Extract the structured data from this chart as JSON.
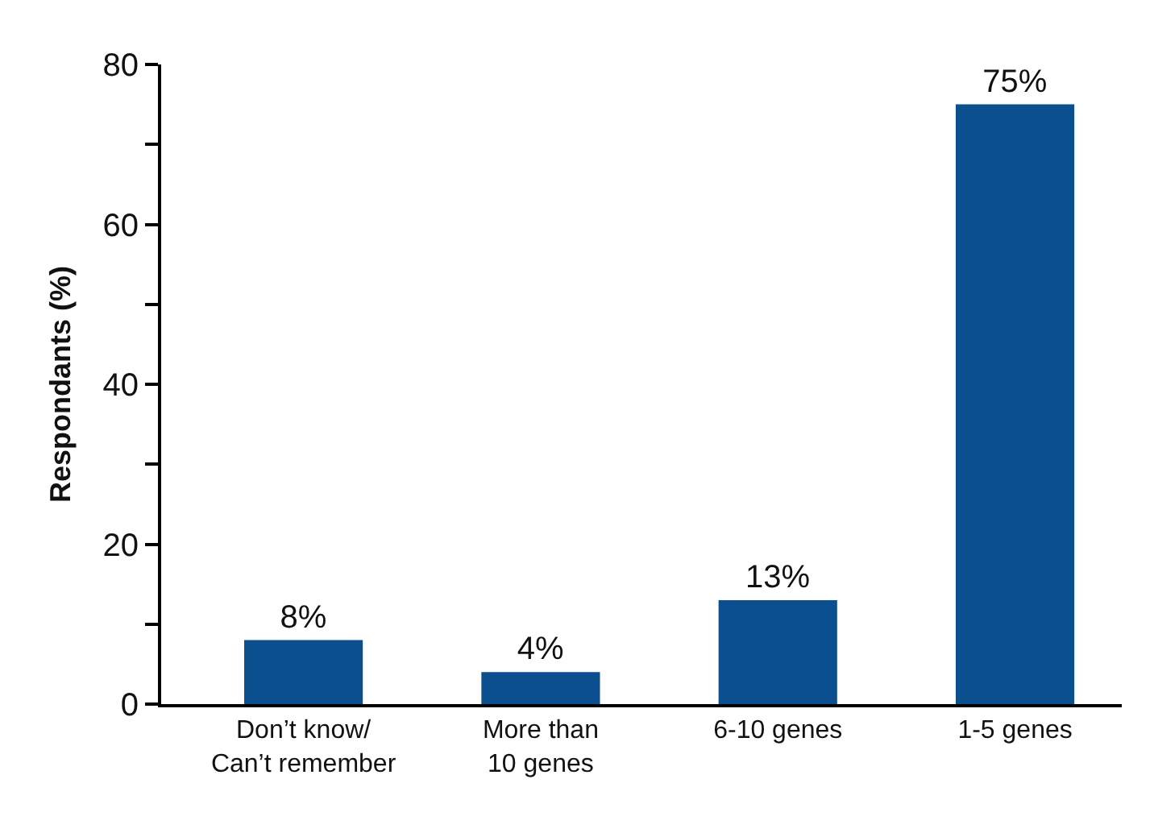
{
  "chart_data": {
    "type": "bar",
    "ylabel": "Respondants (%)",
    "categories": [
      "Don’t know/\nCan’t remember",
      "More than\n10 genes",
      "6-10 genes",
      "1-5 genes"
    ],
    "values": [
      8,
      4,
      13,
      75
    ],
    "value_labels": [
      "8%",
      "4%",
      "13%",
      "75%"
    ],
    "color": "#0b4f8e",
    "ylim": [
      0,
      80
    ],
    "yticks": [
      0,
      {
        "value": 10,
        "label": null
      },
      20,
      {
        "value": 30,
        "label": null
      },
      40,
      {
        "value": 50,
        "label": null
      },
      60,
      {
        "value": 70,
        "label": null
      },
      80
    ]
  }
}
